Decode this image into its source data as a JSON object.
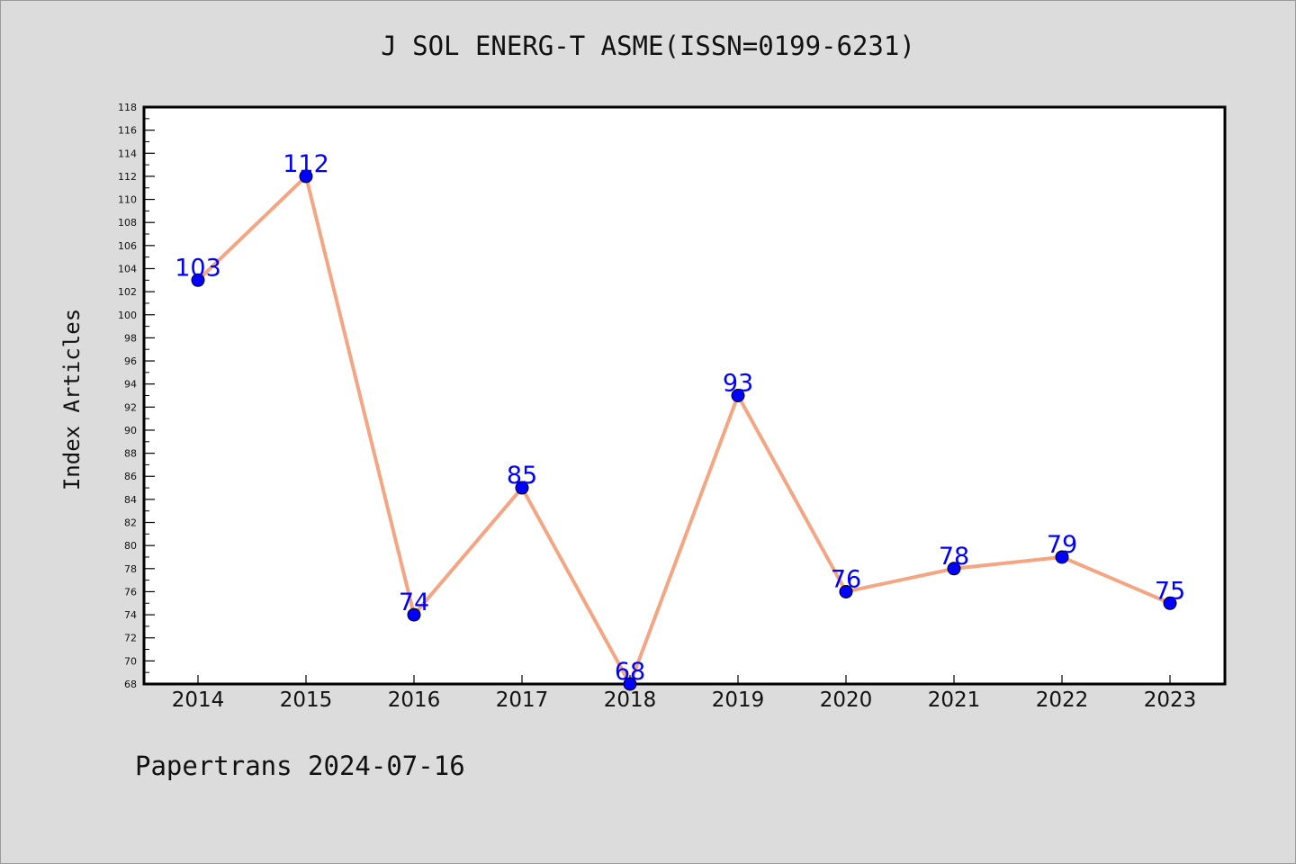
{
  "title": "J SOL ENERG-T ASME(ISSN=0199-6231)",
  "footer": "Papertrans 2024-07-16",
  "colors": {
    "background": "#dcdcdc",
    "plot_background": "#ffffff",
    "line": "#f4a582",
    "marker": "#0000ff",
    "data_label": "#0000ff"
  },
  "chart_data": {
    "type": "line",
    "title": "J SOL ENERG-T ASME(ISSN=0199-6231)",
    "xlabel": "",
    "ylabel": "Index Articles",
    "categories": [
      "2014",
      "2015",
      "2016",
      "2017",
      "2018",
      "2019",
      "2020",
      "2021",
      "2022",
      "2023"
    ],
    "series": [
      {
        "values": [
          103,
          112,
          74,
          85,
          68,
          93,
          76,
          78,
          79,
          75
        ]
      }
    ],
    "ylim": [
      68,
      118
    ],
    "y_ticks": [
      68,
      70,
      72,
      74,
      76,
      78,
      80,
      82,
      84,
      86,
      88,
      90,
      92,
      94,
      96,
      98,
      100,
      102,
      104,
      106,
      108,
      110,
      112,
      114,
      116,
      118
    ],
    "grid": false,
    "legend": "none",
    "data_labels": true
  }
}
